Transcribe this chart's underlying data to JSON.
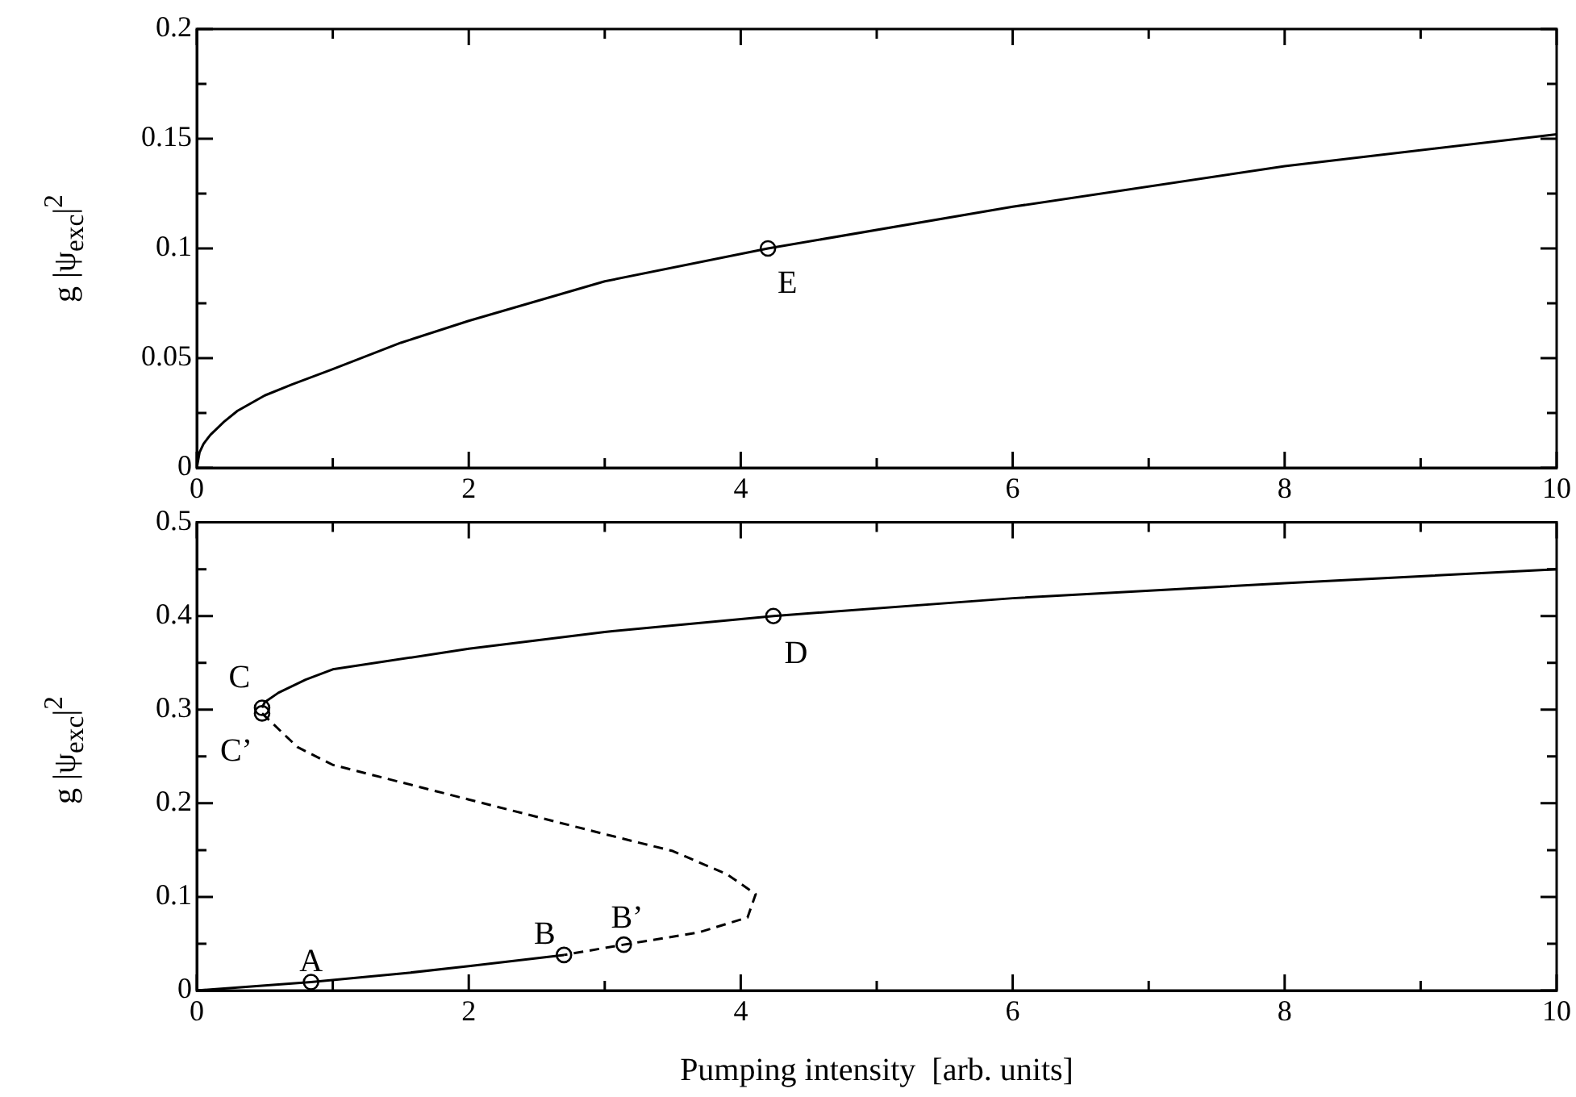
{
  "chart_data": [
    {
      "type": "line",
      "ylabel": "g |ψ$_{exc}$|$^{2}$",
      "xlim": [
        0,
        10
      ],
      "ylim": [
        0,
        0.2
      ],
      "xticks": [
        0,
        {
          "value": 1,
          "label": null
        },
        2,
        {
          "value": 3,
          "label": null
        },
        4,
        {
          "value": 5,
          "label": null
        },
        6,
        {
          "value": 7,
          "label": null
        },
        8,
        {
          "value": 9,
          "label": null
        },
        10
      ],
      "yticks": [
        0,
        {
          "value": 0.025,
          "label": null
        },
        0.05,
        {
          "value": 0.075,
          "label": null
        },
        0.1,
        {
          "value": 0.125,
          "label": null
        },
        0.15,
        {
          "value": 0.175,
          "label": null
        },
        0.2
      ],
      "grid": false,
      "legend": false,
      "series": [
        {
          "type": "line",
          "color": "#000000",
          "line_style": "solid",
          "marker": "none",
          "x": [
            0,
            0.02,
            0.05,
            0.1,
            0.2,
            0.3,
            0.5,
            0.7,
            1,
            1.5,
            2,
            3,
            4.2,
            6,
            8,
            10
          ],
          "values": [
            0,
            0.007,
            0.011,
            0.015,
            0.021,
            0.026,
            0.033,
            0.038,
            0.045,
            0.057,
            0.067,
            0.085,
            0.1,
            0.119,
            0.1375,
            0.152
          ]
        },
        {
          "type": "scatter",
          "color": "#000000",
          "marker": "circle",
          "x": [
            4.2
          ],
          "values": [
            0.1
          ]
        }
      ],
      "annotations": [
        {
          "text": "E",
          "x": 4.2,
          "y": 0.1
        }
      ]
    },
    {
      "type": "line",
      "ylabel": "g |ψ$_{exc}$|$^{2}$",
      "xlabel": "Pumping intensity  [arb. units]",
      "xlim": [
        0,
        10
      ],
      "ylim": [
        0,
        0.5
      ],
      "xticks": [
        0,
        {
          "value": 1,
          "label": null
        },
        2,
        {
          "value": 3,
          "label": null
        },
        4,
        {
          "value": 5,
          "label": null
        },
        6,
        {
          "value": 7,
          "label": null
        },
        8,
        {
          "value": 9,
          "label": null
        },
        10
      ],
      "yticks": [
        0,
        {
          "value": 0.05,
          "label": null
        },
        0.1,
        {
          "value": 0.15,
          "label": null
        },
        0.2,
        {
          "value": 0.25,
          "label": null
        },
        0.3,
        {
          "value": 0.35,
          "label": null
        },
        0.4,
        {
          "value": 0.45,
          "label": null
        },
        0.5
      ],
      "grid": false,
      "legend": false,
      "series": [
        {
          "type": "line",
          "color": "#000000",
          "line_style": "solid",
          "marker": "none",
          "x": [
            0.48,
            0.5,
            0.6,
            0.8,
            1,
            2,
            3,
            4.24,
            6,
            8,
            10
          ],
          "values": [
            0.302,
            0.308,
            0.318,
            0.332,
            0.343,
            0.365,
            0.383,
            0.4,
            0.419,
            0.435,
            0.45
          ]
        },
        {
          "type": "line",
          "color": "#000000",
          "line_style": "dashed",
          "marker": "none",
          "x": [
            0.48,
            0.74,
            1,
            2,
            3,
            3.5,
            3.9,
            4.11,
            4.05,
            3.69,
            3.14,
            2.7
          ],
          "values": [
            0.296,
            0.26,
            0.241,
            0.204,
            0.167,
            0.149,
            0.124,
            0.103,
            0.078,
            0.062,
            0.049,
            0.038
          ]
        },
        {
          "type": "line",
          "color": "#000000",
          "line_style": "solid",
          "marker": "none",
          "x": [
            0,
            0.84,
            1.5,
            2,
            2.7
          ],
          "values": [
            0,
            0.009,
            0.018,
            0.026,
            0.038
          ]
        },
        {
          "type": "scatter",
          "color": "#000000",
          "marker": "circle",
          "x": [
            0.84,
            2.7,
            3.14,
            0.48,
            0.48,
            4.24
          ],
          "values": [
            0.009,
            0.038,
            0.049,
            0.302,
            0.296,
            0.4
          ]
        }
      ],
      "annotations": [
        {
          "text": "A",
          "x": 0.84,
          "y": 0.009
        },
        {
          "text": "B",
          "x": 2.7,
          "y": 0.038
        },
        {
          "text": "B’",
          "x": 3.14,
          "y": 0.049
        },
        {
          "text": "C",
          "x": 0.48,
          "y": 0.302
        },
        {
          "text": "C’",
          "x": 0.48,
          "y": 0.296
        },
        {
          "text": "D",
          "x": 4.24,
          "y": 0.4
        }
      ]
    }
  ]
}
